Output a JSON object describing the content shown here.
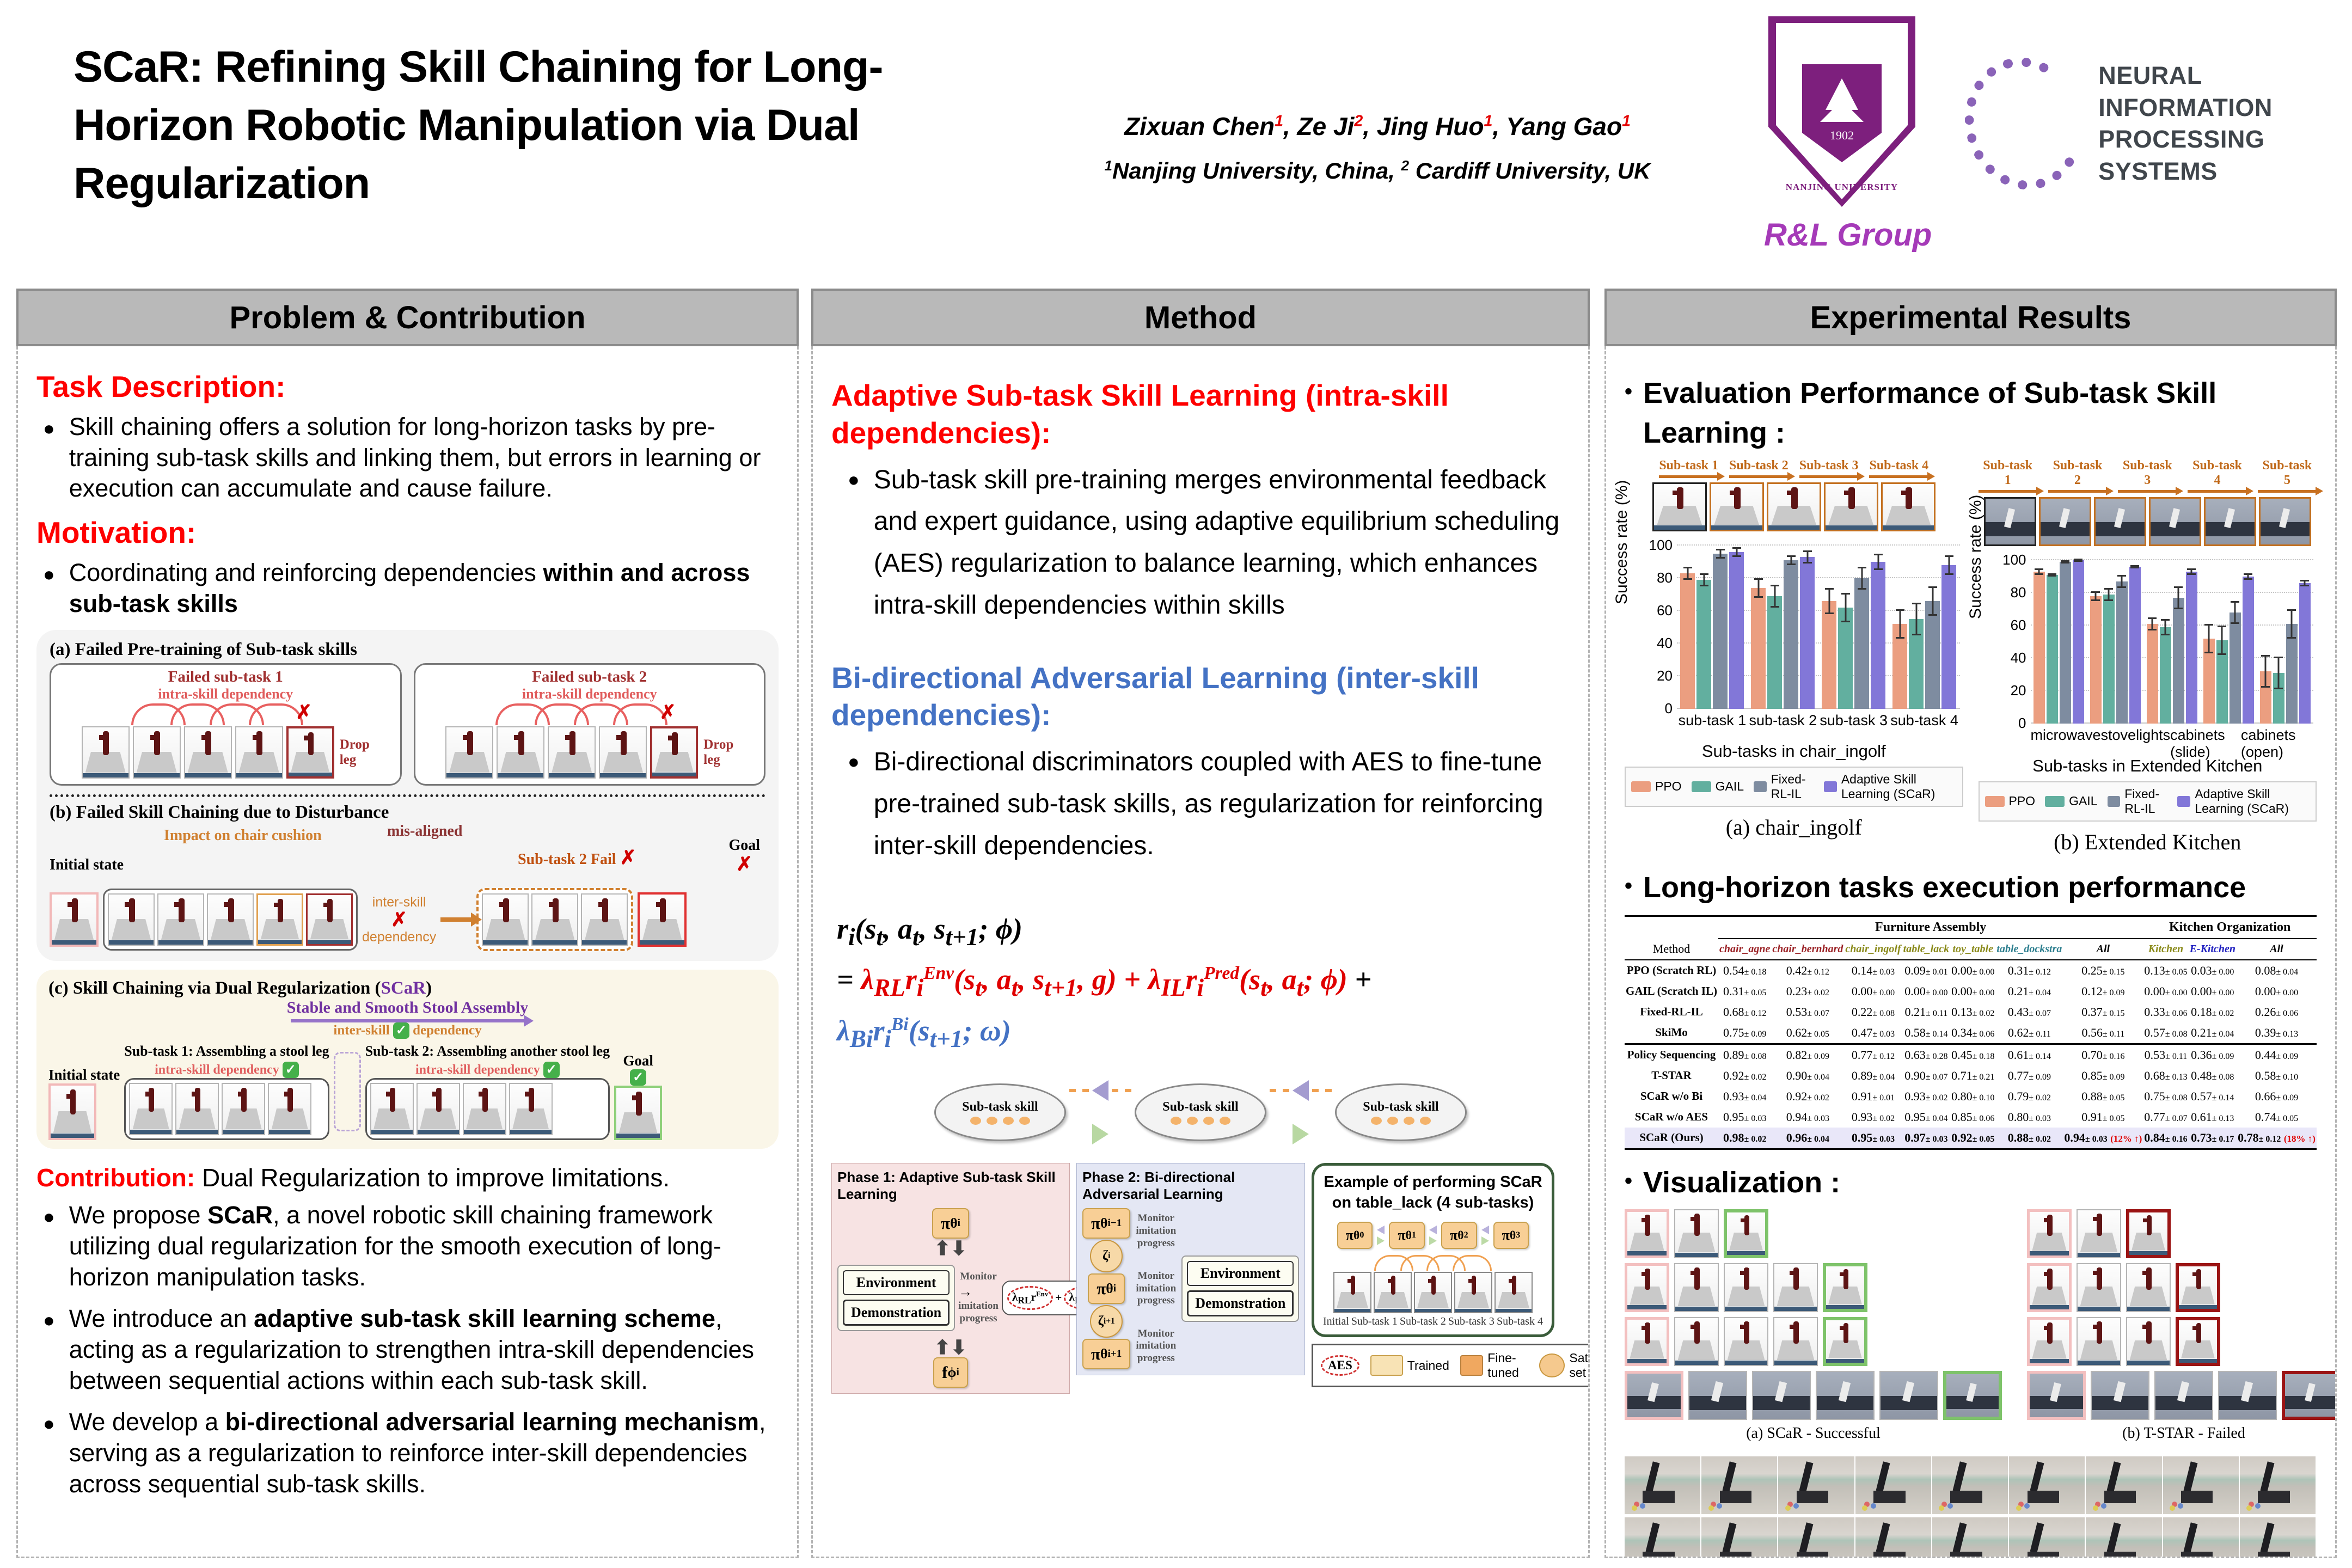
{
  "marks": {
    "x": "✗",
    "check": "✓",
    "dot": "●",
    "updown": "⬆⬇"
  },
  "header": {
    "title_l1": "SCaR: Refining Skill Chaining for Long-",
    "title_l2": "Horizon Robotic Manipulation via Dual",
    "title_l3": "Regularization",
    "authors_segments": [
      {
        "t": "Zixuan Chen"
      },
      {
        "t": "1",
        "sup": 1,
        "red": 1
      },
      {
        "t": ", Ze Ji"
      },
      {
        "t": "2",
        "sup": 1,
        "red": 1
      },
      {
        "t": ", Jing Huo"
      },
      {
        "t": "1",
        "sup": 1,
        "red": 1
      },
      {
        "t": ", Yang Gao"
      },
      {
        "t": "1",
        "sup": 1,
        "red": 1
      }
    ],
    "affil_segments": [
      {
        "t": "1",
        "sup": 1
      },
      {
        "t": "Nanjing University, China, "
      },
      {
        "t": "2",
        "sup": 1
      },
      {
        "t": " Cardiff University, UK"
      }
    ],
    "nju_year": "1902",
    "nju_name": "NANJING UNIVERSITY",
    "rl_group": "R&L Group",
    "neurips_l1": "NEURAL INFORMATION",
    "neurips_l2": "PROCESSING SYSTEMS"
  },
  "col1": {
    "header": "Problem & Contribution",
    "task_head": "Task Description:",
    "task_body": "Skill chaining offers a solution for long-horizon tasks by pre-training sub-task skills and linking them, but errors in learning or execution can accumulate and cause failure.",
    "motiv_head": "Motivation:",
    "motiv_segments": [
      {
        "t": "Coordinating and reinforcing dependencies "
      },
      {
        "t": "within and across sub-task skills",
        "b": 1
      }
    ],
    "fig_a": {
      "title": "(a) Failed Pre-training of Sub-task skills",
      "panels": [
        {
          "title": "Failed sub-task 1",
          "dep": "intra-skill dependency",
          "frames": 5,
          "drop1": "Drop",
          "drop2": "leg"
        },
        {
          "title": "Failed sub-task 2",
          "dep": "intra-skill dependency",
          "frames": 5,
          "drop1": "Drop",
          "drop2": "leg"
        }
      ]
    },
    "fig_b": {
      "title": "(b) Failed Skill Chaining  due to Disturbance",
      "initial": "Initial state",
      "impact": "Impact on chair cushion",
      "mis": "mis-aligned",
      "inter1": "inter-skill",
      "inter2": "dependency",
      "fail": "Sub-task 2 Fail",
      "goal": "Goal"
    },
    "fig_c": {
      "title_pre": "(c)  Skill Chaining via Dual Regularization  (",
      "title_scar": "SCaR",
      "title_post": ")",
      "banner": "Stable and Smooth Stool Assembly",
      "inter1": "inter-skill",
      "inter2": "dependency",
      "initial": "Initial state",
      "sub1": "Sub-task 1: Assembling a stool leg",
      "sub2": "Sub-task 2: Assembling another stool leg",
      "intra": "intra-skill dependency",
      "goal": "Goal"
    },
    "contrib_head": "Contribution:",
    "contrib_tail": " Dual Regularization to improve limitations.",
    "bullet1_segments": [
      {
        "t": "We propose "
      },
      {
        "t": "SCaR",
        "b": 1
      },
      {
        "t": ", a novel robotic skill chaining framework utilizing dual regularization for the smooth execution of long-horizon manipulation tasks."
      }
    ],
    "bullet2_segments": [
      {
        "t": "We introduce an "
      },
      {
        "t": "adaptive sub-task skill learning scheme",
        "b": 1
      },
      {
        "t": ", acting as a regularization to strengthen intra-skill dependencies between sequential actions within each sub-task skill."
      }
    ],
    "bullet3_segments": [
      {
        "t": "We develop a "
      },
      {
        "t": "bi-directional adversarial learning mechanism",
        "b": 1
      },
      {
        "t": ", serving as a regularization to reinforce inter-skill dependencies across sequential sub-task skills."
      }
    ]
  },
  "col2": {
    "header": "Method",
    "h1": "Adaptive Sub-task Skill Learning (intra-skill dependencies):",
    "b1": "Sub-task skill pre-training merges environmental feedback and expert guidance, using adaptive equilibrium scheduling (AES) regularization to balance learning, which enhances intra-skill dependencies within skills",
    "h2": "Bi-directional Adversarial Learning (inter-skill dependencies):",
    "b2": "Bi-directional discriminators coupled with AES to fine-tune pre-trained sub-task skills, as regularization for reinforcing inter-skill dependencies.",
    "formula_l1": "r<sub>i</sub>(s<sub>t</sub>, a<sub>t</sub>, s<sub>t+1</sub>; ϕ)",
    "formula_l2": "= <span class=\"fred\">λ<sub>RL</sub>r<sub>i</sub><sup>Env</sup>(s<sub>t</sub>, a<sub>t</sub>, s<sub>t+1</sub>, g) + λ<sub>IL</sub>r<sub>i</sub><sup>Pred</sup>(s<sub>t</sub>, a<sub>t</sub>; ϕ)</span> +",
    "formula_l3": "<span class=\"fblue\">λ<sub>Bi</sub>r<sub>i</sub><sup>Bi</sup>(s<sub>t+1</sub>; ω)</span>",
    "diagram": {
      "ellipse_label": "Sub-task skill",
      "phase1_title": "Phase 1: Adaptive Sub-task Skill Learning",
      "phase2_title": "Phase 2: Bi-directional Adversarial Learning",
      "env": "Environment",
      "demo": "Demonstration",
      "monitor": "Monitor",
      "imit": "imitation progress",
      "pi_i": "π<sub>θ</sub><sup>i</sup>",
      "pi_im1": "π<sub>θ</sub><sup>i−1</sup>",
      "pi_ip1": "π<sub>θ</sub><sup>i+1</sup>",
      "f_i": "f<sub>ϕ</sub><sup>i</sup>",
      "zeta_i": "ζ<sup>i</sup>",
      "zeta_ip1": "ζ<sup>i+1</sup>",
      "reward_a": "λ<sub>RL</sub>r<sup>Env</sup>",
      "reward_plus": "+",
      "reward_b": "λ<sub>IL</sub>r<sup>Pred</sup>",
      "ex_title1": "Example of performing SCaR",
      "ex_title2": "on  table_lack (4 sub-tasks)",
      "pis": [
        "π<sub>θ</sub><sup>0</sup>",
        "π<sub>θ</sub><sup>1</sup>",
        "π<sub>θ</sub><sup>2</sup>",
        "π<sub>θ</sub><sup>3</sup>"
      ],
      "frame_labels": [
        "Initial",
        "Sub-task 1",
        "Sub-task 2",
        "Sub-task 3",
        "Sub-task 4"
      ],
      "legend": [
        {
          "label": "AES",
          "type": "aes"
        },
        {
          "label": "Trained",
          "type": "trained"
        },
        {
          "label": "Fine-tuned",
          "type": "finetuned"
        },
        {
          "label": "Sate set",
          "type": "sateset"
        }
      ]
    }
  },
  "col3": {
    "header": "Experimental Results",
    "h_eval": "Evaluation Performance of Sub-task Skill Learning :",
    "h_long": "Long-horizon tasks execution performance",
    "h_viz": "Visualization :",
    "table": {
      "group1": "Furniture Assembly",
      "group2": "Kitchen Organization",
      "col_headers": [
        {
          "label": "Method",
          "color": "#000000"
        },
        {
          "label": "chair_agne",
          "color": "#9b2226"
        },
        {
          "label": "chair_bernhard",
          "color": "#9b2226"
        },
        {
          "label": "chair_ingolf",
          "color": "#8a8a1a"
        },
        {
          "label": "table_lack",
          "color": "#8a8a1a"
        },
        {
          "label": "toy_table",
          "color": "#8a8a1a"
        },
        {
          "label": "table_dockstra",
          "color": "#2e7f8f"
        },
        {
          "label": "All",
          "color": "#000000"
        },
        {
          "label": "Kitchen",
          "color": "#8a8a1a"
        },
        {
          "label": "E-Kitchen",
          "color": "#2020c0"
        },
        {
          "label": "All",
          "color": "#000000"
        }
      ],
      "rows": [
        {
          "method": "PPO (Scratch RL)",
          "cells": [
            "0.54±0.18",
            "0.42±0.12",
            "0.14±0.03",
            "0.09±0.01",
            "0.00±0.00",
            "0.31±0.12",
            "0.25±0.15",
            "0.13±0.05",
            "0.03±0.00",
            "0.08±0.04"
          ]
        },
        {
          "method": "GAIL (Scratch IL)",
          "cells": [
            "0.31±0.05",
            "0.23±0.02",
            "0.00±0.00",
            "0.00±0.00",
            "0.00±0.00",
            "0.21±0.04",
            "0.12±0.09",
            "0.00±0.00",
            "0.00±0.00",
            "0.00±0.00"
          ]
        },
        {
          "method": "Fixed-RL-IL",
          "cells": [
            "0.68±0.12",
            "0.53±0.07",
            "0.22±0.08",
            "0.21±0.11",
            "0.13±0.02",
            "0.43±0.07",
            "0.37±0.15",
            "0.33±0.06",
            "0.18±0.02",
            "0.26±0.06"
          ]
        },
        {
          "method": "SkiMo",
          "sep": true,
          "cells": [
            "0.75±0.09",
            "0.62±0.05",
            "0.47±0.03",
            "0.58±0.14",
            "0.34±0.06",
            "0.62±0.11",
            "0.56±0.11",
            "0.57±0.08",
            "0.21±0.04",
            "0.39±0.13"
          ]
        },
        {
          "method": "Policy Sequencing",
          "cells": [
            "0.89±0.08",
            "0.82±0.09",
            "0.77±0.12",
            "0.63±0.28",
            "0.45±0.18",
            "0.61±0.14",
            "0.70±0.16",
            "0.53±0.11",
            "0.36±0.09",
            "0.44±0.09"
          ]
        },
        {
          "method": "T-STAR",
          "cells": [
            "0.92±0.02",
            "0.90±0.04",
            "0.89±0.04",
            "0.90±0.07",
            "0.71±0.21",
            "0.77±0.09",
            "0.85±0.09",
            "0.68±0.13",
            "0.48±0.08",
            "0.58±0.10"
          ]
        },
        {
          "method": "SCaR w/o Bi",
          "cells": [
            "0.93±0.04",
            "0.92±0.02",
            "0.91±0.01",
            "0.93±0.02",
            "0.80±0.10",
            "0.79±0.02",
            "0.88±0.05",
            "0.75±0.08",
            "0.57±0.14",
            "0.66±0.09"
          ]
        },
        {
          "method": "SCaR w/o AES",
          "cells": [
            "0.95±0.03",
            "0.94±0.03",
            "0.93±0.02",
            "0.95±0.04",
            "0.85±0.06",
            "0.80±0.03",
            "0.91±0.05",
            "0.77±0.07",
            "0.61±0.13",
            "0.74±0.05"
          ]
        },
        {
          "method": "SCaR (Ours)",
          "cells": [
            "0.98±0.02",
            "0.96±0.04",
            "0.95±0.03",
            "0.97±0.03",
            "0.92±0.05",
            "0.88±0.02",
            "0.94±0.03 (12% ↑)",
            "0.84±0.16",
            "0.73±0.17",
            "0.78±0.12 (18% ↑)"
          ]
        }
      ]
    },
    "viz": {
      "left": {
        "caption": "(a) SCaR - Successful",
        "end": "#7ec36a",
        "rows": [
          {
            "n": 3,
            "style": "robot"
          },
          {
            "n": 5,
            "style": "robot"
          },
          {
            "n": 5,
            "style": "robot"
          },
          {
            "n": 6,
            "style": "kitchen"
          }
        ]
      },
      "right": {
        "caption": "(b) T-STAR - Failed",
        "end": "#9b1414",
        "rows": [
          {
            "n": 3,
            "style": "robot"
          },
          {
            "n": 4,
            "style": "robot"
          },
          {
            "n": 4,
            "style": "robot"
          },
          {
            "n": 5,
            "style": "kitchen"
          }
        ]
      },
      "filmstrip_rows": 2,
      "filmstrip_frames": 9
    }
  },
  "chart_data": [
    {
      "type": "bar",
      "title": "(a) chair_ingolf",
      "caption": "(a) chair_ingolf",
      "subtask_labels": [
        "Sub-task 1",
        "Sub-task 2",
        "Sub-task 3",
        "Sub-task 4"
      ],
      "frames": 5,
      "frame_style": "robot",
      "categories": [
        "sub-task 1",
        "sub-task 2",
        "sub-task 3",
        "sub-task 4"
      ],
      "series": [
        {
          "name": "PPO",
          "values": [
            83,
            74,
            66,
            52
          ],
          "errors": [
            4,
            6,
            8,
            9
          ]
        },
        {
          "name": "GAIL",
          "values": [
            79,
            69,
            62,
            55
          ],
          "errors": [
            4,
            7,
            9,
            10
          ]
        },
        {
          "name": "Fixed-RL-IL",
          "values": [
            95,
            91,
            80,
            66
          ],
          "errors": [
            3,
            3,
            7,
            9
          ]
        },
        {
          "name": "Adaptive Skill Learning (SCaR)",
          "values": [
            96,
            93,
            90,
            88
          ],
          "errors": [
            3,
            4,
            5,
            6
          ]
        }
      ],
      "colors": [
        "#eb9e80",
        "#62af9f",
        "#7e8ca0",
        "#8277d8"
      ],
      "ylabel": "Success rate (%)",
      "xlabel": "Sub-tasks in chair_ingolf",
      "ylim": [
        0,
        100
      ],
      "yticks": [
        0,
        20,
        40,
        60,
        80,
        100
      ],
      "barw": 27
    },
    {
      "type": "bar",
      "title": "(b) Extended Kitchen",
      "caption": "(b) Extended Kitchen",
      "subtask_labels": [
        "Sub-task 1",
        "Sub-task 2",
        "Sub-task 3",
        "Sub-task 4",
        "Sub-task 5"
      ],
      "frames": 6,
      "frame_style": "kitchen",
      "categories": [
        "microwave",
        "stove",
        "lights",
        "cabinets (slide)",
        "cabinets (open)"
      ],
      "series": [
        {
          "name": "PPO",
          "values": [
            93,
            78,
            61,
            52,
            32
          ],
          "errors": [
            2,
            3,
            4,
            9,
            10
          ]
        },
        {
          "name": "GAIL",
          "values": [
            91,
            79,
            59,
            51,
            31
          ],
          "errors": [
            1,
            4,
            5,
            9,
            10
          ]
        },
        {
          "name": "Fixed-RL-IL",
          "values": [
            99,
            87,
            77,
            68,
            61
          ],
          "errors": [
            1,
            4,
            7,
            7,
            9
          ]
        },
        {
          "name": "Adaptive Skill Learning (SCaR)",
          "values": [
            100,
            96,
            93,
            90,
            86
          ],
          "errors": [
            1,
            1,
            2,
            2,
            2
          ]
        }
      ],
      "colors": [
        "#eb9e80",
        "#62af9f",
        "#7e8ca0",
        "#8277d8"
      ],
      "ylabel": "Success rate (%)",
      "xlabel": "Sub-tasks in Extended Kitchen",
      "ylim": [
        0,
        100
      ],
      "yticks": [
        0,
        20,
        40,
        60,
        80,
        100
      ],
      "barw": 21
    }
  ]
}
